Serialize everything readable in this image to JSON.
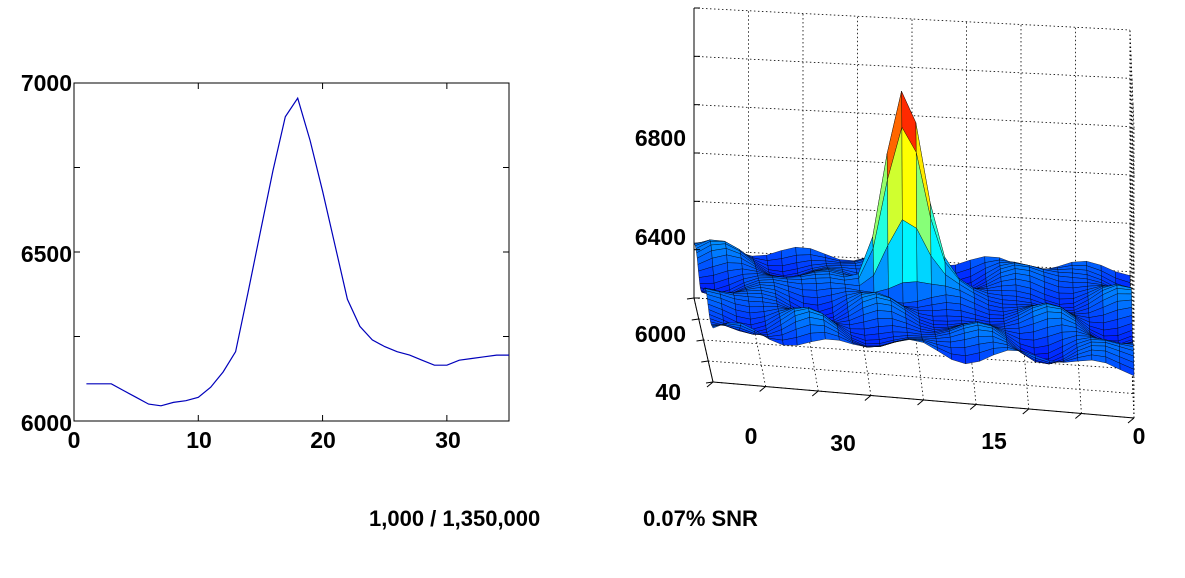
{
  "chart_data": [
    {
      "type": "line",
      "x": [
        1,
        2,
        3,
        4,
        5,
        6,
        7,
        8,
        9,
        10,
        11,
        12,
        13,
        14,
        15,
        16,
        17,
        18,
        19,
        20,
        21,
        22,
        23,
        24,
        25,
        26,
        27,
        28,
        29,
        30,
        31,
        32,
        33,
        34,
        35
      ],
      "series": [
        {
          "values": [
            6110,
            6110,
            6110,
            6090,
            6070,
            6050,
            6045,
            6055,
            6060,
            6070,
            6100,
            6145,
            6205,
            6380,
            6560,
            6740,
            6900,
            6955,
            6830,
            6680,
            6520,
            6360,
            6280,
            6240,
            6220,
            6205,
            6195,
            6180,
            6165,
            6165,
            6180,
            6185,
            6190,
            6195,
            6195
          ]
        }
      ],
      "color": "#0000bb",
      "xlim": [
        0,
        35
      ],
      "ylim": [
        6000,
        7000
      ],
      "xticks": [
        "0",
        "10",
        "20",
        "30"
      ],
      "yticks": [
        "6000",
        "6500",
        "7000"
      ],
      "grid": false
    },
    {
      "type": "surface",
      "peak": 6880,
      "zticks": [
        "6000",
        "6400",
        "6800"
      ],
      "xticks": [
        "30",
        "15",
        "0"
      ],
      "yticks": [
        "40",
        "0"
      ],
      "colormap": "jet",
      "grid": true
    }
  ],
  "caption": {
    "ratio": "1,000 / 1,350,000",
    "snr": "0.07% SNR"
  }
}
